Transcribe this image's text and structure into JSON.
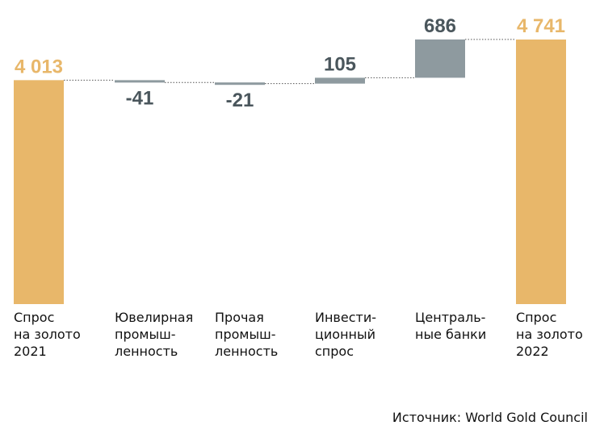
{
  "chart_data": {
    "type": "waterfall",
    "categories": [
      "Спрос\nна золото\n2021",
      "Ювелирная\nпромыш-\nленность",
      "Прочая\nпромыш-\nленность",
      "Инвести-\nционный\nспрос",
      "Централь-\nные банки",
      "Спрос\nна золото\n2022"
    ],
    "values": [
      4013,
      -41,
      -21,
      105,
      686,
      4741
    ],
    "value_labels": [
      "4 013",
      "-41",
      "-21",
      "105",
      "686",
      "4 741"
    ],
    "bar_kinds": [
      "total",
      "delta",
      "delta",
      "delta",
      "delta",
      "total"
    ],
    "ylim": [
      0,
      4741
    ],
    "colors": {
      "total": "#E8B76A",
      "delta": "#8E9A9F",
      "total_label": "#E8B76A",
      "delta_label": "#4A565C",
      "connector": "#555555"
    }
  },
  "source": "Источник: World Gold Council"
}
